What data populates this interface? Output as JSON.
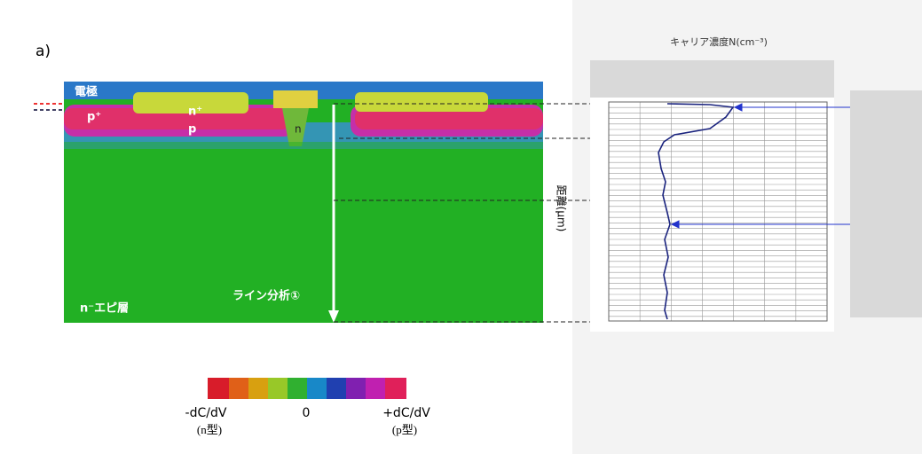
{
  "figure": {
    "panel_label": "a)",
    "image_labels": {
      "electrode": "電極",
      "p_plus": "p⁺",
      "n_plus": "n⁺",
      "p": "p",
      "n": "n",
      "line_analysis": "ライン分析①",
      "epi": "n⁻エピ層"
    },
    "profile": {
      "title": "キャリア濃度N(cm⁻³)",
      "y_label": "距離(μm)"
    },
    "colorbar": {
      "left": "-dC/dV",
      "middle": "0",
      "right": "+dC/dV",
      "left_sub": "(n型)",
      "right_sub": "(p型)"
    }
  }
}
